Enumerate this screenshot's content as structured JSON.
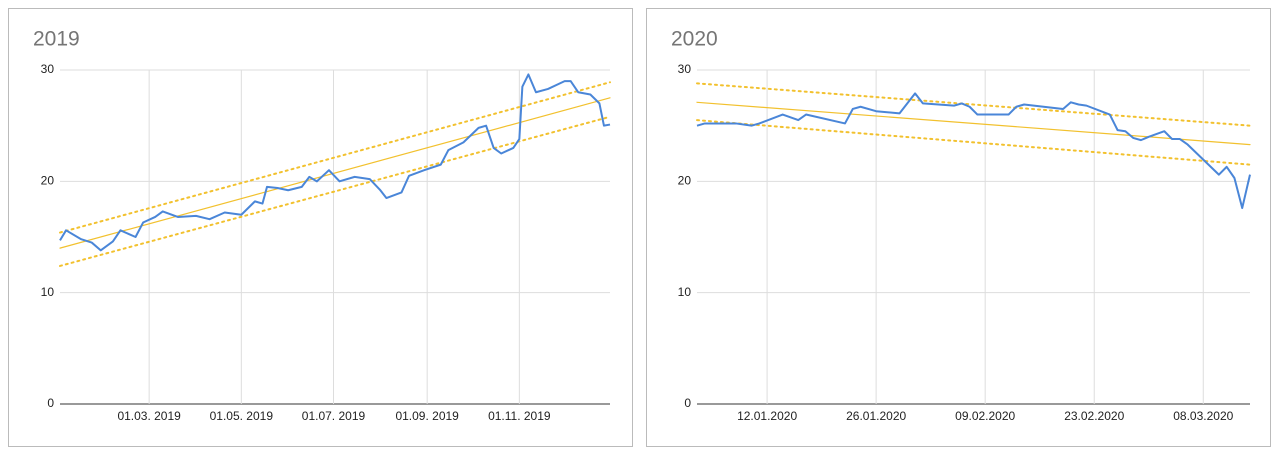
{
  "chart_data": [
    {
      "type": "line",
      "title": "2019",
      "x": [
        "2019-01-01",
        "2019-01-05",
        "2019-01-15",
        "2019-01-22",
        "2019-01-28",
        "2019-02-05",
        "2019-02-10",
        "2019-02-20",
        "2019-02-25",
        "2019-03-05",
        "2019-03-10",
        "2019-03-20",
        "2019-04-01",
        "2019-04-10",
        "2019-04-20",
        "2019-05-01",
        "2019-05-10",
        "2019-05-15",
        "2019-05-18",
        "2019-05-25",
        "2019-06-01",
        "2019-06-10",
        "2019-06-15",
        "2019-06-20",
        "2019-06-28",
        "2019-07-05",
        "2019-07-15",
        "2019-07-25",
        "2019-08-01",
        "2019-08-05",
        "2019-08-15",
        "2019-08-20",
        "2019-08-30",
        "2019-09-10",
        "2019-09-15",
        "2019-09-25",
        "2019-10-05",
        "2019-10-10",
        "2019-10-15",
        "2019-10-20",
        "2019-10-28",
        "2019-11-01",
        "2019-11-03",
        "2019-11-07",
        "2019-11-12",
        "2019-11-20",
        "2019-12-01",
        "2019-12-05",
        "2019-12-10",
        "2019-12-18",
        "2019-12-24",
        "2019-12-27",
        "2019-12-31"
      ],
      "series": [
        {
          "color": "#4a86d8",
          "values": [
            14.7,
            15.6,
            14.8,
            14.5,
            13.8,
            14.6,
            15.6,
            15.0,
            16.3,
            16.8,
            17.3,
            16.8,
            16.9,
            16.6,
            17.2,
            17.0,
            18.2,
            18.0,
            19.5,
            19.4,
            19.2,
            19.5,
            20.4,
            20.0,
            21.0,
            20.0,
            20.4,
            20.2,
            19.2,
            18.5,
            19.0,
            20.5,
            21.0,
            21.5,
            22.8,
            23.5,
            24.8,
            25.0,
            23.0,
            22.5,
            23.0,
            23.8,
            28.5,
            29.6,
            28.0,
            28.3,
            29.0,
            29.0,
            28.0,
            27.8,
            27.0,
            25.0,
            25.1
          ]
        }
      ],
      "trendlines": [
        {
          "x": [
            "2019-01-01",
            "2019-12-31"
          ],
          "values": [
            14.0,
            27.5
          ],
          "color": "#f2c12e",
          "dotted": false
        },
        {
          "x": [
            "2019-01-01",
            "2019-12-31"
          ],
          "values": [
            15.4,
            28.9
          ],
          "color": "#f2c12e",
          "dotted": true
        },
        {
          "x": [
            "2019-01-01",
            "2019-12-31"
          ],
          "values": [
            12.4,
            25.8
          ],
          "color": "#f2c12e",
          "dotted": true
        }
      ],
      "xlim": [
        "2019-01-01",
        "2019-12-31"
      ],
      "xticks": [
        {
          "value": "2019-03-01",
          "label": "01.03. 2019"
        },
        {
          "value": "2019-05-01",
          "label": "01.05. 2019"
        },
        {
          "value": "2019-07-01",
          "label": "01.07. 2019"
        },
        {
          "value": "2019-09-01",
          "label": "01.09. 2019"
        },
        {
          "value": "2019-11-01",
          "label": "01.11. 2019"
        }
      ],
      "ylim": [
        0,
        30
      ],
      "yticks": [
        0,
        10,
        20,
        30
      ],
      "grid": true
    },
    {
      "type": "line",
      "title": "2020",
      "x": [
        "2020-01-03",
        "2020-01-04",
        "2020-01-08",
        "2020-01-10",
        "2020-01-11",
        "2020-01-14",
        "2020-01-16",
        "2020-01-17",
        "2020-01-22",
        "2020-01-23",
        "2020-01-24",
        "2020-01-26",
        "2020-01-29",
        "2020-01-31",
        "2020-02-01",
        "2020-02-05",
        "2020-02-06",
        "2020-02-07",
        "2020-02-08",
        "2020-02-12",
        "2020-02-13",
        "2020-02-14",
        "2020-02-19",
        "2020-02-20",
        "2020-02-21",
        "2020-02-22",
        "2020-02-25",
        "2020-02-26",
        "2020-02-27",
        "2020-02-28",
        "2020-02-29",
        "2020-03-01",
        "2020-03-03",
        "2020-03-04",
        "2020-03-05",
        "2020-03-06",
        "2020-03-10",
        "2020-03-11",
        "2020-03-12",
        "2020-03-13",
        "2020-03-14"
      ],
      "series": [
        {
          "color": "#4a86d8",
          "values": [
            25.0,
            25.2,
            25.2,
            25.0,
            25.2,
            26.0,
            25.5,
            26.0,
            25.2,
            26.5,
            26.7,
            26.3,
            26.1,
            27.9,
            27.0,
            26.8,
            27.0,
            26.7,
            26.0,
            26.0,
            26.7,
            26.9,
            26.5,
            27.1,
            26.9,
            26.8,
            26.0,
            24.6,
            24.5,
            23.9,
            23.7,
            24.0,
            24.5,
            23.8,
            23.8,
            23.3,
            20.6,
            21.3,
            20.3,
            17.6,
            20.6
          ]
        }
      ],
      "trendlines": [
        {
          "x": [
            "2020-01-03",
            "2020-03-14"
          ],
          "values": [
            27.1,
            23.3
          ],
          "color": "#f2c12e",
          "dotted": false
        },
        {
          "x": [
            "2020-01-03",
            "2020-03-14"
          ],
          "values": [
            28.8,
            25.0
          ],
          "color": "#f2c12e",
          "dotted": true
        },
        {
          "x": [
            "2020-01-03",
            "2020-03-14"
          ],
          "values": [
            25.5,
            21.5
          ],
          "color": "#f2c12e",
          "dotted": true
        }
      ],
      "xlim": [
        "2020-01-03",
        "2020-03-14"
      ],
      "xticks": [
        {
          "value": "2020-01-12",
          "label": "12.01.2020"
        },
        {
          "value": "2020-01-26",
          "label": "26.01.2020"
        },
        {
          "value": "2020-02-09",
          "label": "09.02.2020"
        },
        {
          "value": "2020-02-23",
          "label": "23.02.2020"
        },
        {
          "value": "2020-03-08",
          "label": "08.03.2020"
        }
      ],
      "ylim": [
        0,
        30
      ],
      "yticks": [
        0,
        10,
        20,
        30
      ],
      "grid": true
    }
  ]
}
